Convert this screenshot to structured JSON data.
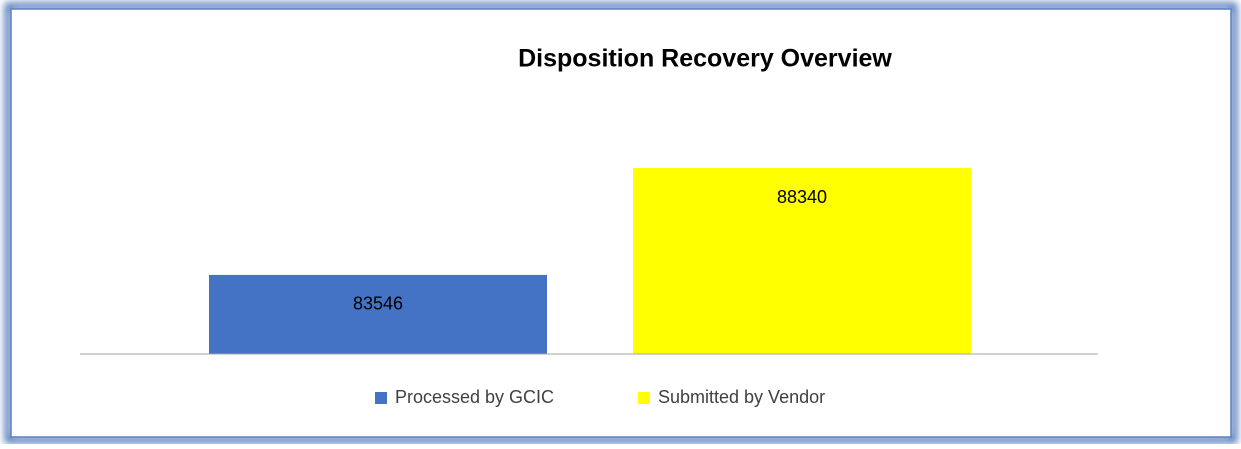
{
  "chart_data": {
    "type": "bar",
    "title": "Disposition Recovery Overview",
    "categories": [
      null
    ],
    "series": [
      {
        "name": "Processed by GCIC",
        "color": "#4472c4",
        "values": [
          83546
        ]
      },
      {
        "name": "Submitted by Vendor",
        "color": "#ffff00",
        "values": [
          88340
        ]
      }
    ],
    "ylim": [
      80000,
      90000
    ],
    "legend": "bottom",
    "data_labels": true
  }
}
